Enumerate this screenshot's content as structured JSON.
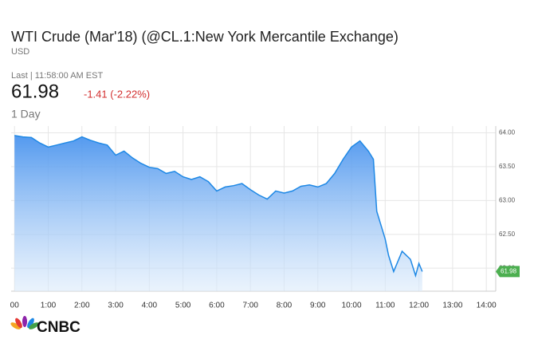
{
  "header": {
    "title": "WTI Crude (Mar'18) (@CL.1:New York Mercantile Exchange)",
    "currency": "USD",
    "last": "Last | 11:58:00 AM EST",
    "price": "61.98",
    "change": "-1.41 (-2.22%)",
    "range": "1 Day",
    "logo": "CNBC"
  },
  "chart_data": {
    "type": "area",
    "color": "#1e88e5",
    "grid": true,
    "x": [
      0,
      0.25,
      0.5,
      0.75,
      1,
      1.25,
      1.5,
      1.75,
      2,
      2.25,
      2.5,
      2.75,
      3,
      3.25,
      3.5,
      3.75,
      4,
      4.25,
      4.5,
      4.75,
      5,
      5.25,
      5.5,
      5.75,
      6,
      6.25,
      6.5,
      6.75,
      7,
      7.25,
      7.5,
      7.75,
      8,
      8.25,
      8.5,
      8.75,
      9,
      9.25,
      9.5,
      9.75,
      10,
      10.25,
      10.5,
      10.65,
      10.75,
      11,
      11.1,
      11.25,
      11.5,
      11.75,
      11.9,
      12,
      12.1
    ],
    "values": [
      63.96,
      63.94,
      63.93,
      63.85,
      63.79,
      63.82,
      63.85,
      63.88,
      63.94,
      63.89,
      63.85,
      63.82,
      63.67,
      63.73,
      63.63,
      63.55,
      63.49,
      63.47,
      63.4,
      63.43,
      63.35,
      63.31,
      63.35,
      63.28,
      63.14,
      63.2,
      63.22,
      63.25,
      63.16,
      63.08,
      63.02,
      63.14,
      63.11,
      63.14,
      63.21,
      63.23,
      63.2,
      63.25,
      63.4,
      63.61,
      63.79,
      63.88,
      63.73,
      63.61,
      62.84,
      62.43,
      62.19,
      61.95,
      62.25,
      62.13,
      61.89,
      62.07,
      61.95
    ],
    "xlim": [
      -0.1,
      14.28
    ],
    "ylim": [
      61.66,
      64.1
    ],
    "xticks": [
      {
        "value": 0,
        "label": "00"
      },
      {
        "value": 1,
        "label": "1:00"
      },
      {
        "value": 2,
        "label": "2:00"
      },
      {
        "value": 3,
        "label": "3:00"
      },
      {
        "value": 4,
        "label": "4:00"
      },
      {
        "value": 5,
        "label": "5:00"
      },
      {
        "value": 6,
        "label": "6:00"
      },
      {
        "value": 7,
        "label": "7:00"
      },
      {
        "value": 8,
        "label": "8:00"
      },
      {
        "value": 9,
        "label": "9:00"
      },
      {
        "value": 10,
        "label": "10:00"
      },
      {
        "value": 11,
        "label": "11:00"
      },
      {
        "value": 12,
        "label": "12:00"
      },
      {
        "value": 13,
        "label": "13:00"
      },
      {
        "value": 14,
        "label": "14:00"
      }
    ],
    "yticks": [
      {
        "value": 62,
        "label": "62.00"
      },
      {
        "value": 62.5,
        "label": "62.50"
      },
      {
        "value": 63,
        "label": "63.00"
      },
      {
        "value": 63.5,
        "label": "63.50"
      },
      {
        "value": 64,
        "label": "64.00"
      }
    ]
  }
}
